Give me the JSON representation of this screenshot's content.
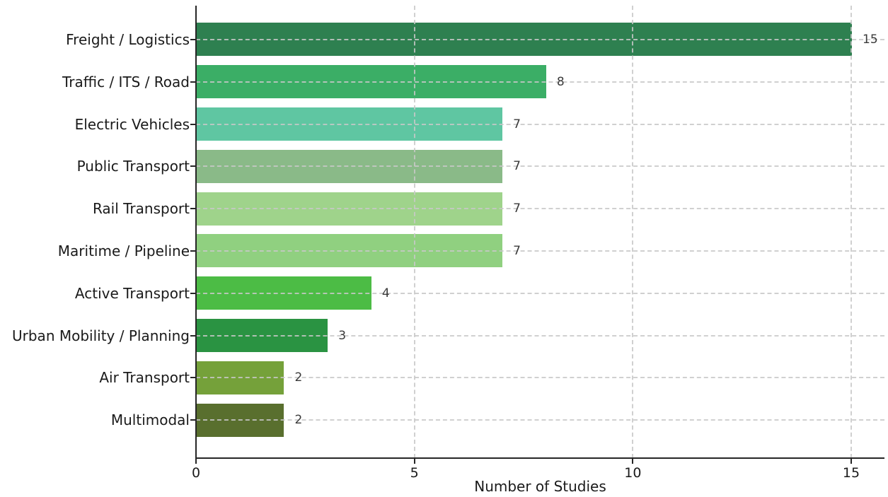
{
  "chart_data": {
    "type": "bar",
    "orientation": "horizontal",
    "title": "",
    "xlabel": "Number of Studies",
    "ylabel": "",
    "categories": [
      "Freight / Logistics",
      "Traffic / ITS / Road",
      "Electric Vehicles",
      "Public Transport",
      "Rail Transport",
      "Maritime / Pipeline",
      "Active Transport",
      "Urban Mobility / Planning",
      "Air Transport",
      "Multimodal"
    ],
    "values": [
      15,
      8,
      7,
      7,
      7,
      7,
      4,
      3,
      2,
      2
    ],
    "value_labels": [
      "15",
      "8",
      "7",
      "7",
      "7",
      "7",
      "4",
      "3",
      "2",
      "2"
    ],
    "bar_colors": [
      "#2e8050",
      "#3bae66",
      "#5fc6a2",
      "#8aba88",
      "#9fd38b",
      "#90d080",
      "#4cbc45",
      "#2a9342",
      "#75a13a",
      "#596f2e"
    ],
    "xticks": [
      0,
      5,
      10,
      15
    ],
    "xlim": [
      0,
      15.75
    ],
    "grid": "dashed, both axes, drawn over bars",
    "legend": "none",
    "background_color": "#ffffff",
    "axis_color": "#262626",
    "grid_color": "#c8c8c8",
    "tick_label_color": "#1a1a1a",
    "value_label_color": "#3a3a3a"
  }
}
